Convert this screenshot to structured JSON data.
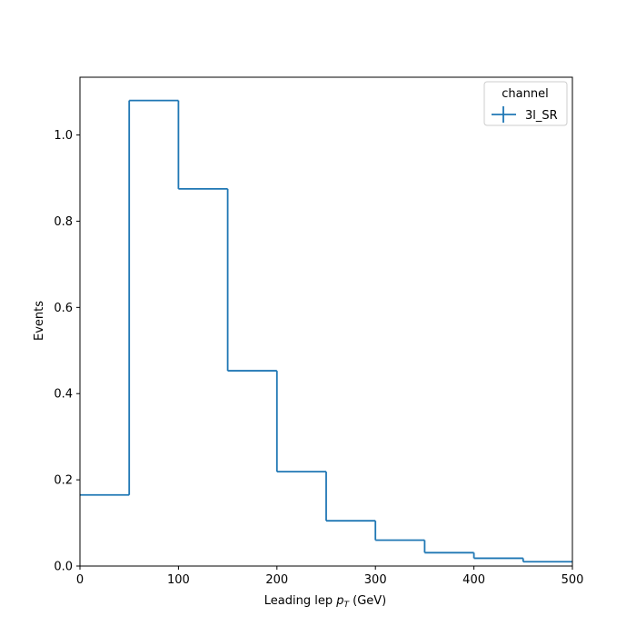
{
  "chart_data": {
    "type": "histogram-step",
    "xlabel_prefix": "Leading lep ",
    "xlabel_var": "p",
    "xlabel_sub": "T",
    "xlabel_suffix": " (GeV)",
    "ylabel": "Events",
    "xlim": [
      0,
      500
    ],
    "ylim": [
      0,
      1.134
    ],
    "xticks": [
      0,
      100,
      200,
      300,
      400,
      500
    ],
    "xtick_labels": [
      "0",
      "100",
      "200",
      "300",
      "400",
      "500"
    ],
    "yticks": [
      0.0,
      0.2,
      0.4,
      0.6,
      0.8,
      1.0
    ],
    "ytick_labels": [
      "0.0",
      "0.2",
      "0.4",
      "0.6",
      "0.8",
      "1.0"
    ],
    "grid": false,
    "legend": {
      "title": "channel",
      "placement": "top-right"
    },
    "bin_edges": [
      0,
      50,
      100,
      150,
      200,
      250,
      300,
      350,
      400,
      450,
      500
    ],
    "series": [
      {
        "name": "3l_SR",
        "color": "#1f77b4",
        "values": [
          0.165,
          1.08,
          0.875,
          0.453,
          0.219,
          0.105,
          0.06,
          0.031,
          0.018,
          0.01
        ]
      }
    ]
  }
}
